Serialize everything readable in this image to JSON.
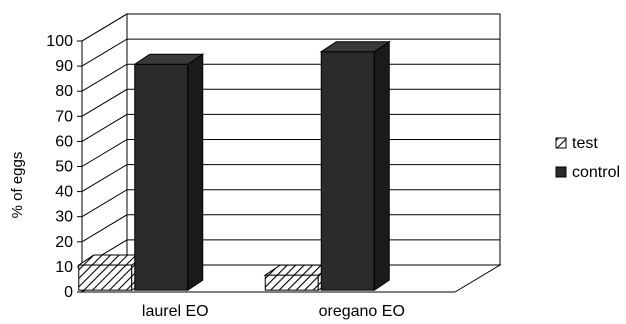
{
  "chart_data": {
    "type": "bar",
    "three_d": true,
    "categories": [
      "laurel EO",
      "oregano EO"
    ],
    "series": [
      {
        "name": "test",
        "values": [
          10,
          6
        ],
        "color": "#ffffff",
        "pattern": "diagonal-hatch"
      },
      {
        "name": "control",
        "values": [
          90,
          95
        ],
        "color": "#2b2b2b"
      }
    ],
    "ylabel": "% of eggs",
    "xlabel": "",
    "ylim": [
      0,
      100
    ],
    "yticks": [
      0,
      10,
      20,
      30,
      40,
      50,
      60,
      70,
      80,
      90,
      100
    ],
    "grid": true,
    "legend_position": "right"
  }
}
